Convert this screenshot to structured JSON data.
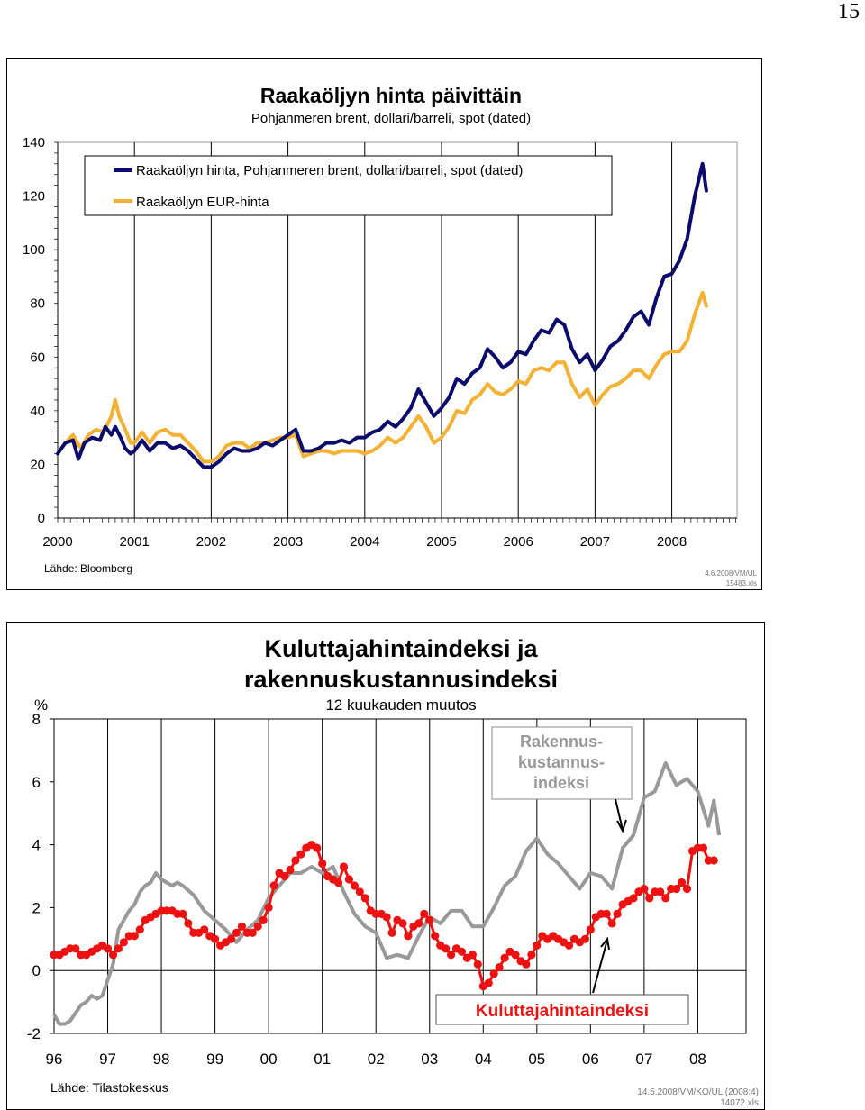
{
  "page": {
    "number": "15"
  },
  "chart_data": [
    {
      "type": "line",
      "title": "Raakaöljyn hinta päivittäin",
      "subtitle": "Pohjanmeren brent, dollari/barreli, spot (dated)",
      "ylim": [
        0,
        140
      ],
      "yticks": [
        "0",
        "20",
        "40",
        "60",
        "80",
        "100",
        "120",
        "140"
      ],
      "xlim": [
        2000,
        2008.85
      ],
      "xticks": [
        {
          "label": "2000",
          "x": 2000.0
        },
        {
          "label": "2001",
          "x": 2001.0
        },
        {
          "label": "2002",
          "x": 2002.0
        },
        {
          "label": "2003",
          "x": 2003.0
        },
        {
          "label": "2004",
          "x": 2004.0
        },
        {
          "label": "2005",
          "x": 2005.0
        },
        {
          "label": "2006",
          "x": 2006.0
        },
        {
          "label": "2007",
          "x": 2007.0
        },
        {
          "label": "2008",
          "x": 2008.0
        }
      ],
      "legend_position": "top-left",
      "series": [
        {
          "name": "Raakaöljyn hinta, Pohjanmeren brent, dollari/barreli, spot (dated)",
          "color": "#0b0b6e",
          "x": [
            2000.0,
            2000.1,
            2000.2,
            2000.27,
            2000.35,
            2000.45,
            2000.55,
            2000.62,
            2000.7,
            2000.75,
            2000.82,
            2000.88,
            2000.95,
            2001.0,
            2001.1,
            2001.2,
            2001.3,
            2001.4,
            2001.5,
            2001.6,
            2001.7,
            2001.8,
            2001.9,
            2002.0,
            2002.1,
            2002.2,
            2002.3,
            2002.4,
            2002.5,
            2002.6,
            2002.7,
            2002.8,
            2002.9,
            2003.0,
            2003.1,
            2003.2,
            2003.3,
            2003.4,
            2003.5,
            2003.6,
            2003.7,
            2003.8,
            2003.9,
            2004.0,
            2004.1,
            2004.2,
            2004.3,
            2004.4,
            2004.5,
            2004.6,
            2004.7,
            2004.8,
            2004.9,
            2005.0,
            2005.1,
            2005.2,
            2005.3,
            2005.4,
            2005.5,
            2005.6,
            2005.7,
            2005.8,
            2005.9,
            2006.0,
            2006.1,
            2006.2,
            2006.3,
            2006.4,
            2006.5,
            2006.6,
            2006.7,
            2006.8,
            2006.9,
            2007.0,
            2007.1,
            2007.2,
            2007.3,
            2007.4,
            2007.5,
            2007.6,
            2007.7,
            2007.8,
            2007.9,
            2008.0,
            2008.1,
            2008.2,
            2008.3,
            2008.4,
            2008.45
          ],
          "y": [
            24,
            28,
            29,
            22,
            28,
            30,
            29,
            34,
            31,
            34,
            30,
            26,
            24,
            25,
            29,
            25,
            28,
            28,
            26,
            27,
            25,
            22,
            19,
            19,
            21,
            24,
            26,
            25,
            25,
            26,
            28,
            27,
            29,
            31,
            33,
            25,
            25,
            26,
            28,
            28,
            29,
            28,
            30,
            30,
            32,
            33,
            36,
            34,
            37,
            41,
            48,
            43,
            38,
            41,
            45,
            52,
            50,
            54,
            56,
            63,
            60,
            56,
            58,
            62,
            61,
            66,
            70,
            69,
            74,
            72,
            63,
            58,
            61,
            55,
            59,
            64,
            66,
            70,
            75,
            77,
            72,
            82,
            90,
            91,
            96,
            104,
            120,
            132,
            122
          ]
        },
        {
          "name": "Raakaöljyn EUR-hinta",
          "color": "#f5b133",
          "x": [
            2000.0,
            2000.1,
            2000.2,
            2000.3,
            2000.4,
            2000.5,
            2000.6,
            2000.7,
            2000.75,
            2000.8,
            2000.88,
            2000.95,
            2001.0,
            2001.1,
            2001.2,
            2001.3,
            2001.4,
            2001.5,
            2001.6,
            2001.7,
            2001.8,
            2001.9,
            2002.0,
            2002.1,
            2002.2,
            2002.3,
            2002.4,
            2002.5,
            2002.6,
            2002.7,
            2002.8,
            2002.9,
            2003.0,
            2003.1,
            2003.2,
            2003.3,
            2003.4,
            2003.5,
            2003.6,
            2003.7,
            2003.8,
            2003.9,
            2004.0,
            2004.1,
            2004.2,
            2004.3,
            2004.4,
            2004.5,
            2004.6,
            2004.7,
            2004.8,
            2004.9,
            2005.0,
            2005.1,
            2005.2,
            2005.3,
            2005.4,
            2005.5,
            2005.6,
            2005.7,
            2005.8,
            2005.9,
            2006.0,
            2006.1,
            2006.2,
            2006.3,
            2006.4,
            2006.5,
            2006.6,
            2006.7,
            2006.8,
            2006.9,
            2007.0,
            2007.1,
            2007.2,
            2007.3,
            2007.4,
            2007.5,
            2007.6,
            2007.7,
            2007.8,
            2007.9,
            2008.0,
            2008.1,
            2008.2,
            2008.3,
            2008.4,
            2008.45
          ],
          "y": [
            24,
            28,
            31,
            26,
            31,
            33,
            32,
            38,
            44,
            38,
            33,
            28,
            28,
            32,
            28,
            32,
            33,
            31,
            31,
            28,
            25,
            21,
            21,
            23,
            27,
            28,
            28,
            26,
            28,
            28,
            29,
            30,
            30,
            31,
            23,
            24,
            25,
            25,
            24,
            25,
            25,
            25,
            24,
            25,
            27,
            30,
            28,
            30,
            34,
            38,
            34,
            28,
            30,
            34,
            40,
            39,
            44,
            46,
            50,
            47,
            46,
            48,
            51,
            50,
            55,
            56,
            55,
            58,
            58,
            50,
            45,
            48,
            42,
            46,
            49,
            50,
            52,
            55,
            55,
            52,
            57,
            61,
            62,
            62,
            66,
            76,
            84,
            79
          ]
        }
      ],
      "source": "Lähde: Bloomberg",
      "file_ref": [
        "4.6.2008/VM/UL",
        "15483.xls"
      ]
    },
    {
      "type": "line",
      "title": [
        "Kuluttajahintaindeksi ja",
        "rakennuskustannusindeksi"
      ],
      "subtitle": "12 kuukauden muutos",
      "ylabel": "%",
      "ylim": [
        -2,
        8
      ],
      "yticks": [
        "-2",
        "0",
        "2",
        "4",
        "6",
        "8"
      ],
      "xlim": [
        1996.0,
        2008.9
      ],
      "xticks": [
        "96",
        "97",
        "98",
        "99",
        "00",
        "01",
        "02",
        "03",
        "04",
        "05",
        "06",
        "07",
        "08"
      ],
      "series": [
        {
          "name": "Rakennuskustannusindeksi",
          "label_lines": [
            "Rakennus-",
            "kustannus-",
            "indeksi"
          ],
          "color": "#999999",
          "x": [
            1996.0,
            1996.1,
            1996.2,
            1996.3,
            1996.5,
            1996.6,
            1996.7,
            1996.8,
            1996.9,
            1997.0,
            1997.1,
            1997.2,
            1997.4,
            1997.5,
            1997.6,
            1997.7,
            1997.8,
            1997.9,
            1998.0,
            1998.1,
            1998.2,
            1998.3,
            1998.4,
            1998.6,
            1998.8,
            1999.0,
            1999.2,
            1999.4,
            1999.6,
            1999.8,
            2000.0,
            2000.2,
            2000.4,
            2000.6,
            2000.8,
            2001.0,
            2001.2,
            2001.4,
            2001.6,
            2001.8,
            2002.0,
            2002.2,
            2002.4,
            2002.6,
            2002.8,
            2003.0,
            2003.2,
            2003.4,
            2003.6,
            2003.8,
            2004.0,
            2004.2,
            2004.4,
            2004.6,
            2004.8,
            2005.0,
            2005.2,
            2005.4,
            2005.6,
            2005.8,
            2006.0,
            2006.2,
            2006.4,
            2006.6,
            2006.8,
            2007.0,
            2007.2,
            2007.4,
            2007.6,
            2007.8,
            2008.0,
            2008.2,
            2008.3,
            2008.4
          ],
          "y": [
            -1.4,
            -1.7,
            -1.7,
            -1.6,
            -1.1,
            -1.0,
            -0.8,
            -0.9,
            -0.8,
            -0.3,
            0.2,
            1.3,
            1.9,
            2.1,
            2.5,
            2.7,
            2.8,
            3.1,
            2.9,
            2.8,
            2.7,
            2.8,
            2.7,
            2.4,
            1.9,
            1.6,
            1.3,
            0.9,
            1.3,
            1.6,
            2.3,
            2.7,
            3.1,
            3.1,
            3.3,
            3.1,
            3.3,
            2.5,
            1.8,
            1.4,
            1.2,
            0.4,
            0.5,
            0.4,
            1.1,
            1.7,
            1.5,
            1.9,
            1.9,
            1.4,
            1.4,
            2.0,
            2.7,
            3.0,
            3.8,
            4.2,
            3.7,
            3.4,
            3.0,
            2.6,
            3.1,
            3.0,
            2.6,
            3.9,
            4.3,
            5.5,
            5.7,
            6.6,
            5.9,
            6.1,
            5.7,
            4.6,
            5.4,
            4.3
          ]
        },
        {
          "name": "Kuluttajahintaindeksi",
          "color": "#ee1111",
          "x": [
            1996.0,
            1996.1,
            1996.2,
            1996.3,
            1996.4,
            1996.5,
            1996.6,
            1996.7,
            1996.8,
            1996.9,
            1997.0,
            1997.1,
            1997.2,
            1997.3,
            1997.4,
            1997.5,
            1997.6,
            1997.7,
            1997.8,
            1997.9,
            1998.0,
            1998.1,
            1998.2,
            1998.3,
            1998.4,
            1998.5,
            1998.6,
            1998.7,
            1998.8,
            1998.9,
            1999.0,
            1999.1,
            1999.2,
            1999.3,
            1999.4,
            1999.5,
            1999.6,
            1999.7,
            1999.8,
            1999.9,
            2000.0,
            2000.1,
            2000.2,
            2000.3,
            2000.4,
            2000.5,
            2000.6,
            2000.7,
            2000.8,
            2000.9,
            2001.0,
            2001.1,
            2001.2,
            2001.3,
            2001.4,
            2001.5,
            2001.6,
            2001.7,
            2001.8,
            2001.9,
            2002.0,
            2002.1,
            2002.2,
            2002.3,
            2002.4,
            2002.5,
            2002.6,
            2002.7,
            2002.8,
            2002.9,
            2003.0,
            2003.1,
            2003.2,
            2003.3,
            2003.4,
            2003.5,
            2003.6,
            2003.7,
            2003.8,
            2003.9,
            2004.0,
            2004.1,
            2004.2,
            2004.3,
            2004.4,
            2004.5,
            2004.6,
            2004.7,
            2004.8,
            2004.9,
            2005.0,
            2005.1,
            2005.2,
            2005.3,
            2005.4,
            2005.5,
            2005.6,
            2005.7,
            2005.8,
            2005.9,
            2006.0,
            2006.1,
            2006.2,
            2006.3,
            2006.4,
            2006.5,
            2006.6,
            2006.7,
            2006.8,
            2006.9,
            2007.0,
            2007.1,
            2007.2,
            2007.3,
            2007.4,
            2007.5,
            2007.6,
            2007.7,
            2007.8,
            2007.9,
            2008.0,
            2008.1,
            2008.2,
            2008.3
          ],
          "y": [
            0.5,
            0.5,
            0.6,
            0.7,
            0.7,
            0.5,
            0.5,
            0.6,
            0.7,
            0.8,
            0.7,
            0.5,
            0.7,
            0.9,
            1.1,
            1.1,
            1.3,
            1.6,
            1.7,
            1.8,
            1.9,
            1.9,
            1.9,
            1.8,
            1.8,
            1.5,
            1.2,
            1.2,
            1.3,
            1.1,
            1.0,
            0.8,
            0.9,
            1.0,
            1.2,
            1.4,
            1.2,
            1.2,
            1.4,
            1.6,
            2.0,
            2.7,
            3.1,
            3.0,
            3.2,
            3.5,
            3.7,
            3.9,
            4.0,
            3.9,
            3.4,
            3.0,
            2.9,
            2.8,
            3.3,
            2.9,
            2.7,
            2.5,
            2.3,
            1.9,
            1.8,
            1.8,
            1.7,
            1.2,
            1.6,
            1.5,
            1.1,
            1.4,
            1.5,
            1.8,
            1.6,
            1.1,
            0.8,
            0.7,
            0.5,
            0.7,
            0.6,
            0.4,
            0.5,
            0.2,
            -0.5,
            -0.4,
            -0.1,
            0.1,
            0.4,
            0.6,
            0.5,
            0.3,
            0.2,
            0.5,
            0.8,
            1.1,
            1.0,
            1.1,
            1.0,
            0.9,
            0.8,
            1.0,
            0.9,
            1.0,
            1.3,
            1.7,
            1.8,
            1.8,
            1.5,
            1.8,
            2.1,
            2.2,
            2.3,
            2.5,
            2.6,
            2.3,
            2.5,
            2.5,
            2.3,
            2.6,
            2.6,
            2.8,
            2.6,
            3.8,
            3.9,
            3.9,
            3.5,
            3.5
          ]
        }
      ],
      "source": "Lähde: Tilastokeskus",
      "file_ref": [
        "14.5.2008/VM/KO/UL (2008:4)",
        "14072.xls"
      ]
    }
  ]
}
